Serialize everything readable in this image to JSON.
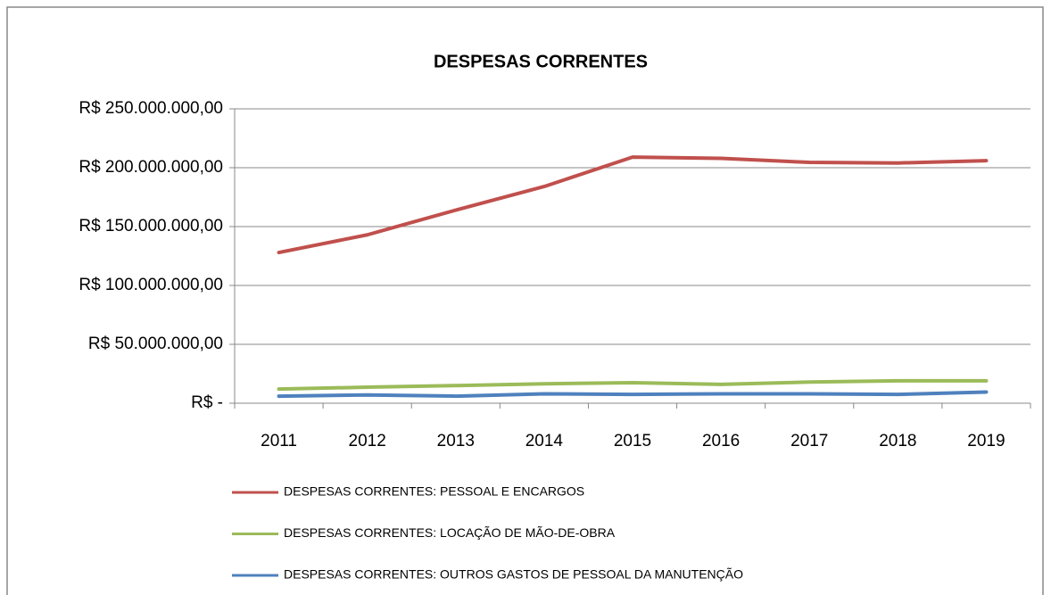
{
  "chart_data": {
    "type": "line",
    "title": "DESPESAS CORRENTES",
    "categories": [
      "2011",
      "2012",
      "2013",
      "2014",
      "2015",
      "2016",
      "2017",
      "2018",
      "2019"
    ],
    "series": [
      {
        "name": "DESPESAS CORRENTES: PESSOAL E ENCARGOS",
        "color": "#c0504d",
        "values": [
          128000000,
          143000000,
          164000000,
          184000000,
          209000000,
          208000000,
          204500000,
          204000000,
          206000000
        ]
      },
      {
        "name": "DESPESAS CORRENTES: LOCAÇÃO DE MÃO-DE-OBRA",
        "color": "#9bbb59",
        "values": [
          12000000,
          13600000,
          15000000,
          16500000,
          17400000,
          16000000,
          18000000,
          19000000,
          19000000
        ]
      },
      {
        "name": "DESPESAS CORRENTES: OUTROS GASTOS DE PESSOAL DA MANUTENÇÃO",
        "color": "#4f81bd",
        "values": [
          6000000,
          7000000,
          6000000,
          8000000,
          7500000,
          8000000,
          8000000,
          7500000,
          9500000
        ]
      }
    ],
    "ylim": [
      0,
      250000000
    ],
    "yticks": [
      {
        "value": 0,
        "label": "R$ -"
      },
      {
        "value": 50000000,
        "label": "R$ 50.000.000,00"
      },
      {
        "value": 100000000,
        "label": "R$ 100.000.000,00"
      },
      {
        "value": 150000000,
        "label": "R$ 150.000.000,00"
      },
      {
        "value": 200000000,
        "label": "R$ 200.000.000,00"
      },
      {
        "value": 250000000,
        "label": "R$ 250.000.000,00"
      }
    ],
    "grid": true,
    "legend": "bottom"
  }
}
